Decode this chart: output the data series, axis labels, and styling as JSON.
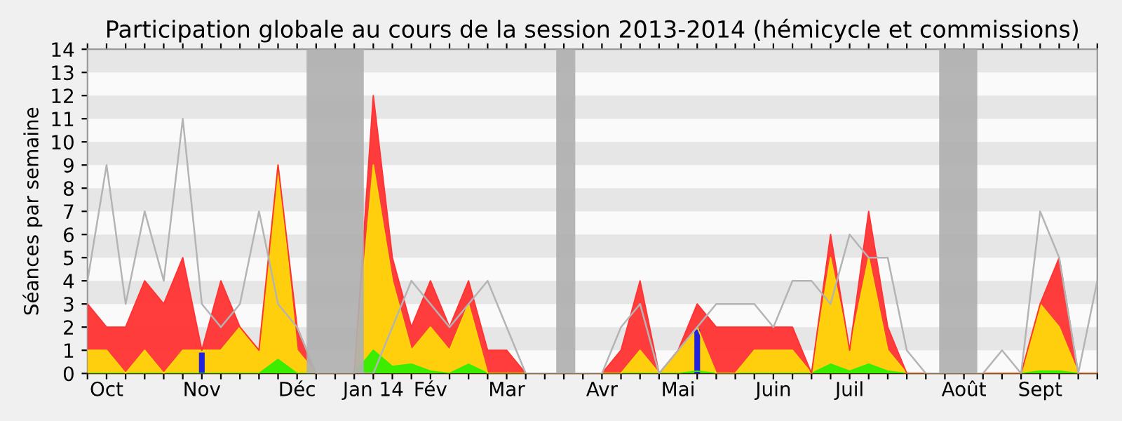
{
  "chart_data": {
    "type": "area",
    "title": "Participation globale au cours de la session 2013-2014 (hémicycle et commissions)",
    "ylabel": "Séances par semaine",
    "categories": [
      null,
      "Oct",
      null,
      null,
      null,
      null,
      "Nov",
      null,
      null,
      null,
      null,
      "Déc",
      null,
      null,
      null,
      "Jan 14",
      null,
      null,
      "Fév",
      null,
      null,
      null,
      "Mar",
      null,
      null,
      null,
      null,
      "Avr",
      null,
      null,
      null,
      "Mai",
      null,
      null,
      null,
      null,
      "Juin",
      null,
      null,
      null,
      "Juil",
      null,
      null,
      null,
      null,
      null,
      "Août",
      null,
      null,
      null,
      "Sept",
      null,
      null,
      null
    ],
    "series": [
      {
        "color": "#ff3333",
        "values": [
          3,
          2,
          2,
          4,
          3,
          5,
          1,
          4,
          2,
          1,
          9,
          2,
          0,
          0,
          0,
          12,
          5,
          2,
          4,
          2,
          4,
          1,
          1,
          0,
          0,
          0,
          0,
          0,
          1,
          4,
          0,
          1,
          3,
          2,
          2,
          2,
          2,
          2,
          0,
          6,
          1,
          7,
          2,
          0,
          0,
          0,
          0,
          0,
          0,
          0,
          3,
          5,
          0,
          0
        ]
      },
      {
        "color": "#ffd60a",
        "values": [
          1,
          1,
          0,
          1,
          0,
          1,
          1,
          1,
          2,
          1,
          9,
          1,
          0,
          0,
          0,
          9,
          4,
          1,
          2,
          1,
          3,
          0,
          0,
          0,
          0,
          0,
          0,
          0,
          0,
          1,
          0,
          1,
          2,
          0,
          0,
          1,
          1,
          1,
          0,
          5,
          1,
          5,
          1,
          0,
          0,
          0,
          0,
          0,
          0,
          0,
          3,
          2,
          0,
          0
        ]
      },
      {
        "color": "#33ee00",
        "values": [
          0,
          0,
          0,
          0,
          0,
          0,
          0,
          0,
          0,
          0,
          0.6,
          0,
          0,
          0,
          0,
          1,
          0.3,
          0.4,
          0.1,
          0,
          0.4,
          0,
          0,
          0,
          0,
          0,
          0,
          0,
          0,
          0,
          0,
          0,
          0.1,
          0,
          0,
          0,
          0,
          0,
          0,
          0.4,
          0.1,
          0.4,
          0.1,
          0,
          0,
          0,
          0,
          0,
          0,
          0,
          0.1,
          0.1,
          0,
          0
        ]
      },
      {
        "type": "line",
        "color": "#b4b4b4",
        "values": [
          4,
          9,
          3,
          7,
          4,
          11,
          3,
          2,
          3,
          7,
          3,
          2,
          0,
          0,
          0,
          0,
          2,
          4,
          3,
          2,
          3,
          4,
          2,
          0,
          0,
          0,
          0,
          0,
          2,
          3,
          0,
          1,
          2,
          3,
          3,
          3,
          2,
          4,
          4,
          3,
          6,
          5,
          5,
          1,
          0,
          0,
          0,
          0,
          1,
          0,
          7,
          5,
          0,
          4
        ]
      },
      {
        "type": "bar",
        "color": "#2222dd",
        "values": [
          null,
          null,
          null,
          null,
          null,
          null,
          0.9,
          null,
          null,
          null,
          null,
          null,
          null,
          null,
          null,
          null,
          null,
          null,
          null,
          null,
          null,
          null,
          null,
          null,
          null,
          null,
          null,
          null,
          null,
          null,
          null,
          null,
          1.9,
          null,
          null,
          null,
          null,
          null,
          null,
          null,
          null,
          null,
          null,
          null,
          null,
          null,
          null,
          null,
          null,
          null,
          null,
          null,
          null,
          null
        ]
      }
    ],
    "ylim": [
      0,
      14
    ],
    "yticks": [
      0,
      1,
      2,
      3,
      4,
      5,
      6,
      7,
      8,
      9,
      10,
      11,
      12,
      13,
      14
    ],
    "grid": false
  }
}
